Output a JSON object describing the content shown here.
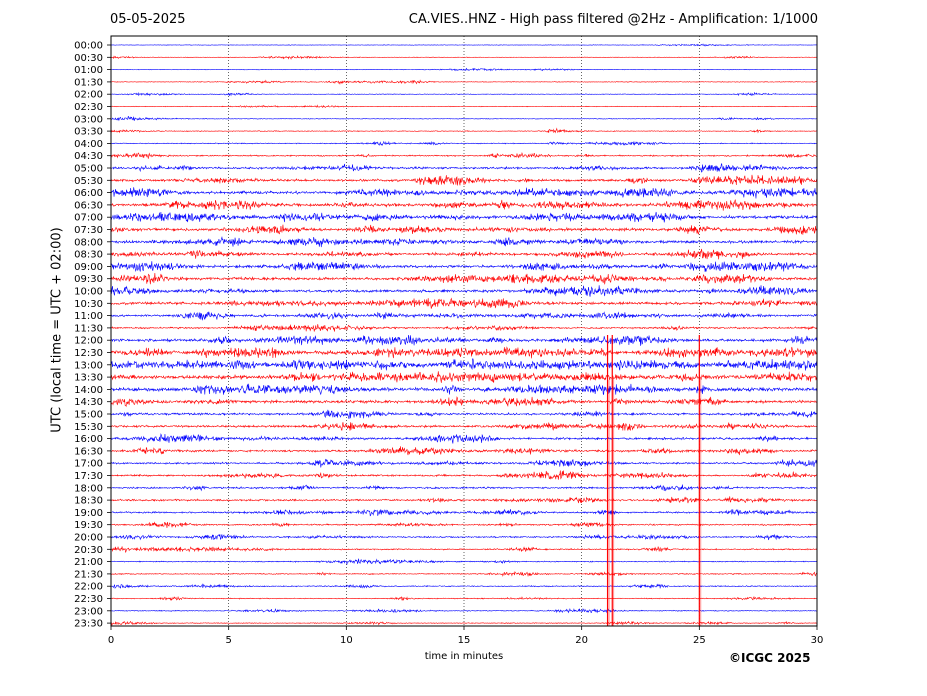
{
  "header": {
    "date": "05-05-2025",
    "title": "CA.VIES..HNZ - High pass filtered @2Hz - Amplification: 1/1000"
  },
  "footer": {
    "copyright": "©ICGC 2025"
  },
  "chart_data": {
    "type": "line",
    "title": "CA.VIES..HNZ - High pass filtered @2Hz - Amplification: 1/1000",
    "xlabel": "time in minutes",
    "ylabel": "UTC (local time = UTC + 02:00)",
    "xlim": [
      0,
      30
    ],
    "x_ticks": [
      "0",
      "5",
      "10",
      "15",
      "20",
      "25",
      "30"
    ],
    "x_gridlines": [
      5,
      10,
      15,
      20,
      25
    ],
    "rows": [
      "00:00",
      "00:30",
      "01:00",
      "01:30",
      "02:00",
      "02:30",
      "03:00",
      "03:30",
      "04:00",
      "04:30",
      "05:00",
      "05:30",
      "06:00",
      "06:30",
      "07:00",
      "07:30",
      "08:00",
      "08:30",
      "09:00",
      "09:30",
      "10:00",
      "10:30",
      "11:00",
      "11:30",
      "12:00",
      "12:30",
      "13:00",
      "13:30",
      "14:00",
      "14:30",
      "15:00",
      "15:30",
      "16:00",
      "16:30",
      "17:00",
      "17:30",
      "18:00",
      "18:30",
      "19:00",
      "19:30",
      "20:00",
      "20:30",
      "21:00",
      "21:30",
      "22:00",
      "22:30",
      "23:00",
      "23:30"
    ],
    "row_colors": [
      "#0000ff",
      "#ff0000"
    ],
    "activity": [
      0.2,
      0.2,
      0.2,
      0.3,
      0.3,
      0.3,
      0.3,
      0.4,
      0.5,
      0.8,
      1.3,
      1.6,
      2.0,
      2.0,
      2.0,
      1.8,
      1.8,
      1.6,
      1.8,
      1.9,
      1.8,
      1.7,
      1.4,
      1.0,
      1.8,
      2.6,
      3.2,
      2.2,
      2.6,
      1.8,
      1.3,
      1.4,
      1.4,
      1.4,
      1.1,
      1.1,
      1.1,
      1.2,
      1.1,
      0.9,
      0.9,
      0.8,
      0.6,
      0.6,
      0.6,
      0.5,
      0.5,
      0.4
    ],
    "spikes_minutes": [
      21.1,
      21.3,
      25.0
    ]
  }
}
